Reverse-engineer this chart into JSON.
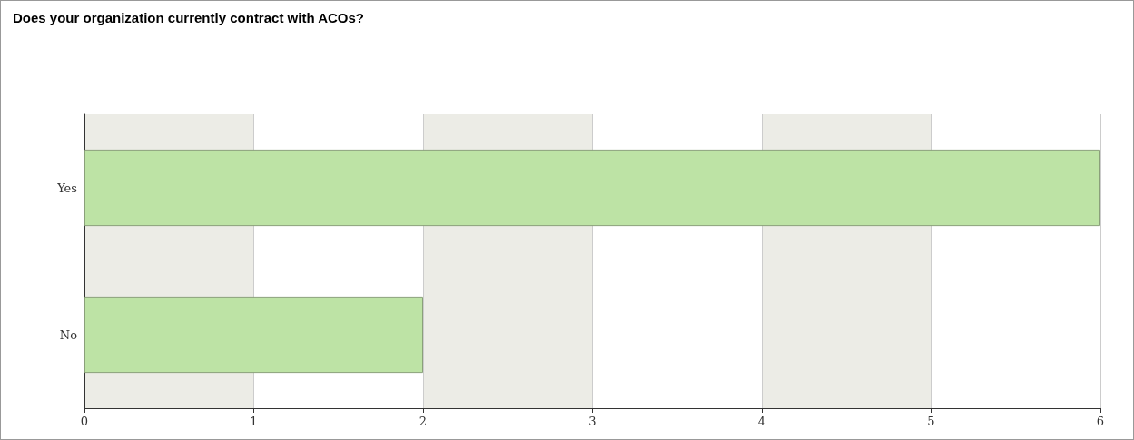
{
  "chart_data": {
    "type": "bar",
    "orientation": "horizontal",
    "title": "Does your organization currently contract with ACOs?",
    "categories": [
      "Yes",
      "No"
    ],
    "values": [
      6,
      2
    ],
    "color": "#bde3a5",
    "xlim": [
      0,
      6
    ],
    "xticks": [
      0,
      1,
      2,
      3,
      4,
      5,
      6
    ],
    "grid": "x"
  }
}
